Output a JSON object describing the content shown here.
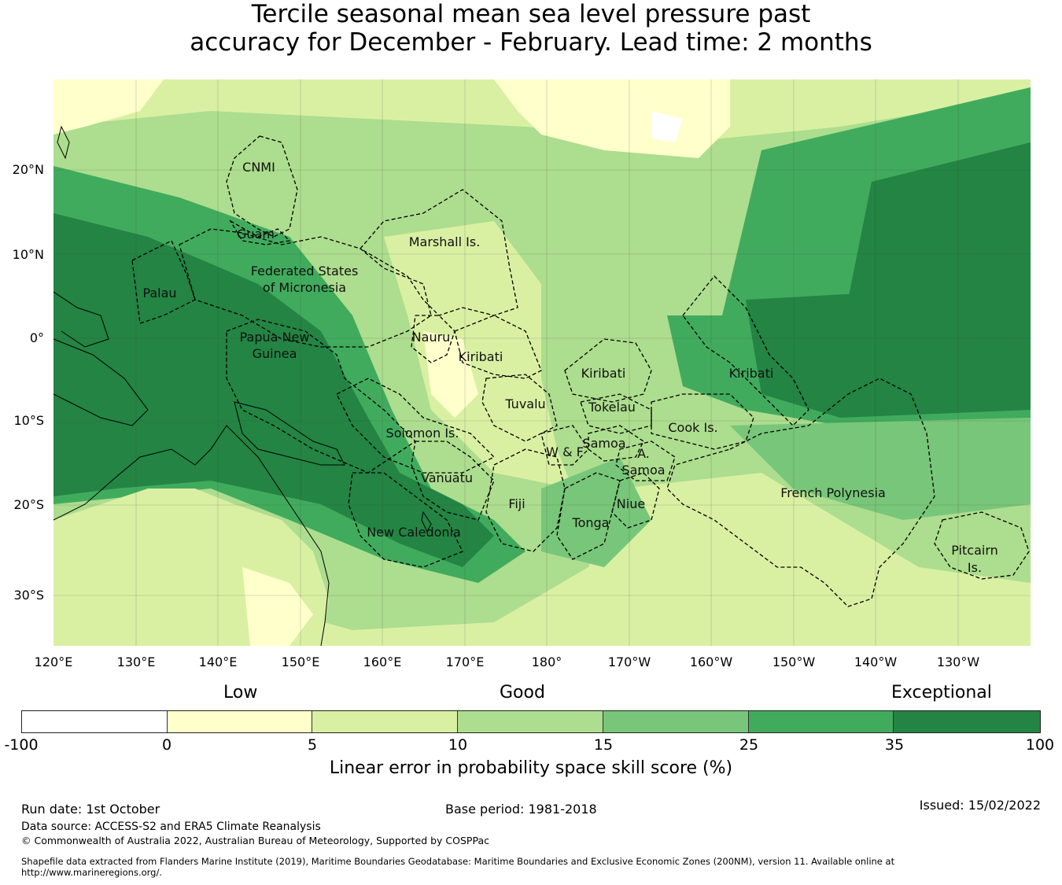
{
  "title": {
    "line1": "Tercile seasonal mean sea level pressure past",
    "line2": "accuracy for December - February. Lead time: 2 months"
  },
  "map": {
    "lat_labels": [
      "20°N",
      "10°N",
      "0°",
      "10°S",
      "20°S",
      "30°S"
    ],
    "lon_labels": [
      "120°E",
      "130°E",
      "140°E",
      "150°E",
      "160°E",
      "170°E",
      "180°",
      "170°W",
      "160°W",
      "150°W",
      "140°W",
      "130°W"
    ],
    "regions": {
      "cnmi": "CNMI",
      "guam": "Guam",
      "marshall": "Marshall Is.",
      "fsm1": "Federated States",
      "fsm2": "of Micronesia",
      "palau": "Palau",
      "nauru": "Nauru",
      "png1": "Papua New",
      "png2": "Guinea",
      "kiribati_w": "Kiribati",
      "kiribati_c": "Kiribati",
      "kiribati_e": "Kiribati",
      "tuvalu": "Tuvalu",
      "tokelau": "Tokelau",
      "solomon": "Solomon Is.",
      "cook": "Cook Is.",
      "samoa": "Samoa",
      "wf": "W & F",
      "asamoa1": "A.",
      "asamoa2": "Samoa",
      "vanuatu": "Vanuatu",
      "fiji": "Fiji",
      "niue": "Niue",
      "tonga": "Tonga",
      "frpoly": "French Polynesia",
      "newcal": "New Caledonia",
      "pitcairn1": "Pitcairn",
      "pitcairn2": "Is."
    },
    "colors": {
      "exceptional": "#238443",
      "c25_35": "#41ab5d",
      "c15_25": "#78c679",
      "c10_15": "#addd8e",
      "c5_10": "#d9f0a3",
      "c0_5": "#ffffcc",
      "neg": "#ffffff"
    }
  },
  "colorbar": {
    "categories": {
      "low": "Low",
      "good": "Good",
      "exceptional": "Exceptional"
    },
    "ticks": [
      "-100",
      "0",
      "5",
      "10",
      "15",
      "25",
      "35",
      "100"
    ],
    "colors": [
      "#ffffff",
      "#ffffcc",
      "#d9f0a3",
      "#addd8e",
      "#78c679",
      "#41ab5d",
      "#238443"
    ],
    "label": "Linear error in probability space skill score (%)"
  },
  "footer": {
    "run_date": "Run date: 1st October",
    "base_period": "Base period: 1981-2018",
    "issued": "Issued: 15/02/2022",
    "data_source": "Data source: ACCESS-S2 and ERA5 Climate Reanalysis",
    "copyright": "© Commonwealth of Australia 2022, Australian Bureau of Meteorology, Supported by COSPPac",
    "shapefile1": "Shapefile data extracted from Flanders Marine Institute (2019), Maritime Boundaries Geodatabase: Maritime Boundaries and Exclusive Economic Zones (200NM), version 11. Available online at",
    "shapefile2": "http://www.marineregions.org/."
  }
}
